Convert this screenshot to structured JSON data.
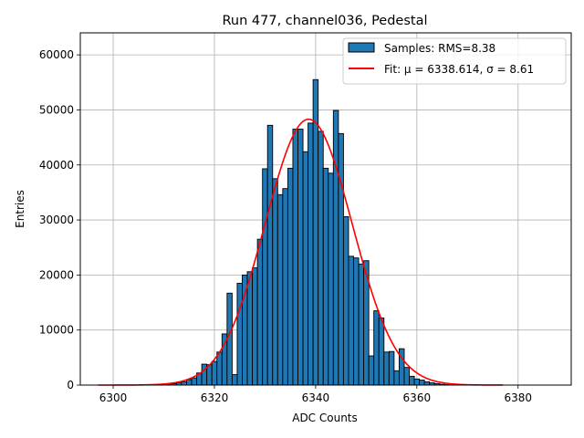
{
  "chart_data": {
    "type": "bar",
    "title": "Run 477, channel036, Pedestal",
    "xlabel": "ADC Counts",
    "ylabel": "Entries",
    "xlim": [
      6293.5,
      6390.5
    ],
    "ylim": [
      0,
      64000
    ],
    "xticks": [
      "6300",
      "6320",
      "6340",
      "6360",
      "6380"
    ],
    "yticks": [
      "0",
      "10000",
      "20000",
      "30000",
      "40000",
      "50000",
      "60000"
    ],
    "grid": true,
    "legend_position": "top-right",
    "bar_color": "#1f77b4",
    "bar_edge_color": "#000000",
    "fit_color": "#ff0000",
    "legend": {
      "samples_label": "Samples: RMS=8.38",
      "fit_label": "Fit: μ = 6338.614, σ = 8.61"
    },
    "histogram": {
      "bin_width": 1,
      "bins": [
        {
          "x": 6310,
          "y": 100
        },
        {
          "x": 6311,
          "y": 150
        },
        {
          "x": 6312,
          "y": 250
        },
        {
          "x": 6313,
          "y": 400
        },
        {
          "x": 6314,
          "y": 600
        },
        {
          "x": 6315,
          "y": 1000
        },
        {
          "x": 6316,
          "y": 1300
        },
        {
          "x": 6317,
          "y": 2200
        },
        {
          "x": 6318,
          "y": 3800
        },
        {
          "x": 6319,
          "y": 3700
        },
        {
          "x": 6320,
          "y": 4300
        },
        {
          "x": 6321,
          "y": 6000
        },
        {
          "x": 6322,
          "y": 9300
        },
        {
          "x": 6323,
          "y": 16700
        },
        {
          "x": 6324,
          "y": 1900
        },
        {
          "x": 6325,
          "y": 18500
        },
        {
          "x": 6326,
          "y": 20000
        },
        {
          "x": 6327,
          "y": 20600
        },
        {
          "x": 6328,
          "y": 21300
        },
        {
          "x": 6329,
          "y": 26500
        },
        {
          "x": 6330,
          "y": 39300
        },
        {
          "x": 6331,
          "y": 47200
        },
        {
          "x": 6332,
          "y": 37500
        },
        {
          "x": 6333,
          "y": 34600
        },
        {
          "x": 6334,
          "y": 35700
        },
        {
          "x": 6335,
          "y": 39400
        },
        {
          "x": 6336,
          "y": 46500
        },
        {
          "x": 6337,
          "y": 46500
        },
        {
          "x": 6338,
          "y": 42400
        },
        {
          "x": 6339,
          "y": 47600
        },
        {
          "x": 6340,
          "y": 55500
        },
        {
          "x": 6341,
          "y": 46100
        },
        {
          "x": 6342,
          "y": 39400
        },
        {
          "x": 6343,
          "y": 38500
        },
        {
          "x": 6344,
          "y": 49900
        },
        {
          "x": 6345,
          "y": 45700
        },
        {
          "x": 6346,
          "y": 30600
        },
        {
          "x": 6347,
          "y": 23400
        },
        {
          "x": 6348,
          "y": 23100
        },
        {
          "x": 6349,
          "y": 22000
        },
        {
          "x": 6350,
          "y": 22600
        },
        {
          "x": 6351,
          "y": 5300
        },
        {
          "x": 6352,
          "y": 13500
        },
        {
          "x": 6353,
          "y": 12200
        },
        {
          "x": 6354,
          "y": 6000
        },
        {
          "x": 6355,
          "y": 6100
        },
        {
          "x": 6356,
          "y": 2600
        },
        {
          "x": 6357,
          "y": 6600
        },
        {
          "x": 6358,
          "y": 3200
        },
        {
          "x": 6359,
          "y": 1600
        },
        {
          "x": 6360,
          "y": 1100
        },
        {
          "x": 6361,
          "y": 900
        },
        {
          "x": 6362,
          "y": 600
        },
        {
          "x": 6363,
          "y": 400
        },
        {
          "x": 6364,
          "y": 250
        },
        {
          "x": 6365,
          "y": 150
        },
        {
          "x": 6366,
          "y": 100
        }
      ]
    },
    "fit": {
      "type": "gaussian",
      "mu": 6338.614,
      "sigma": 8.61,
      "amplitude": 48300,
      "x_range": [
        6297,
        6377
      ]
    }
  }
}
